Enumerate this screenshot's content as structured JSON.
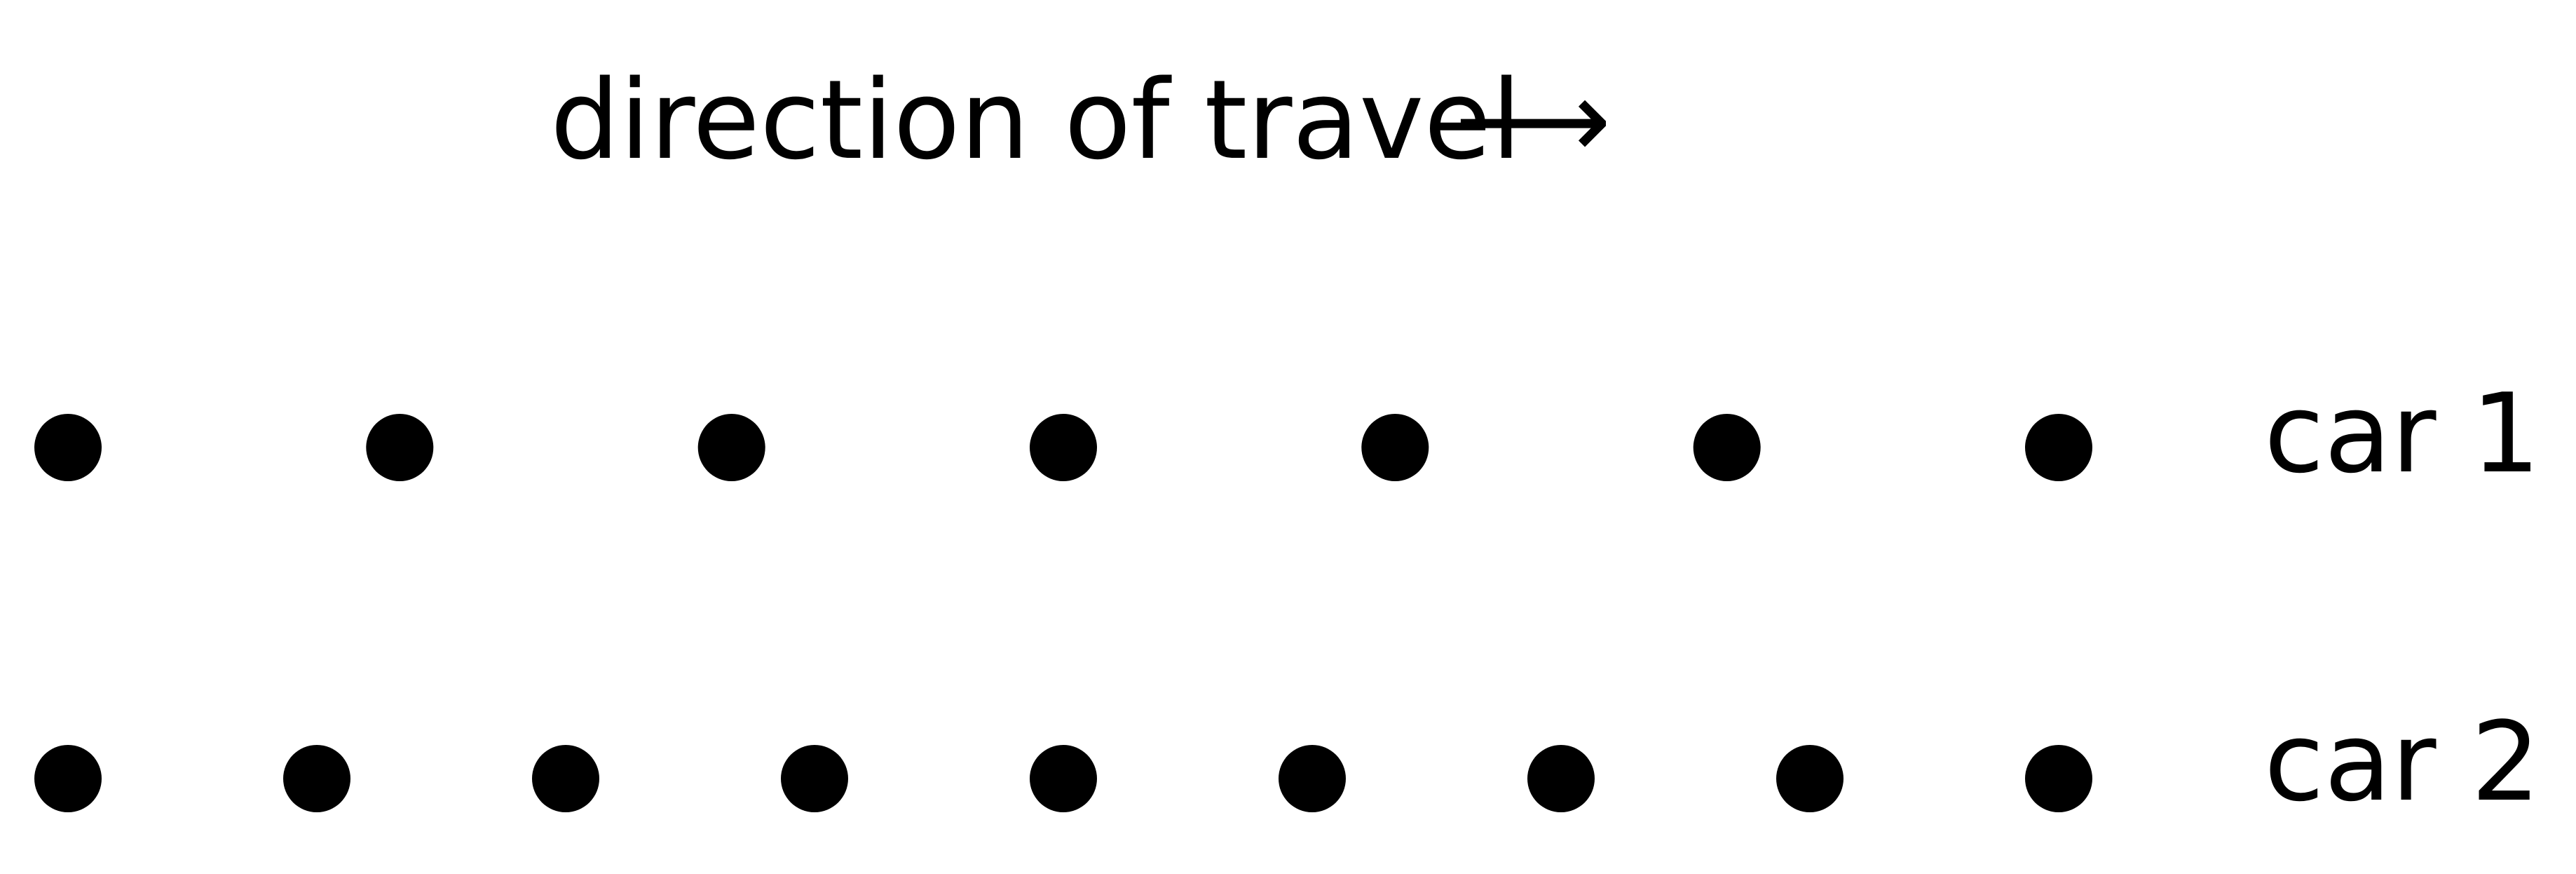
{
  "title": {
    "text": "direction of travel",
    "arrow_glyph": "⟶"
  },
  "rows": [
    {
      "label": "car 1",
      "dot_count": 7
    },
    {
      "label": "car 2",
      "dot_count": 9
    }
  ],
  "colors": {
    "dot": "#000000",
    "text": "#000000",
    "background": "#ffffff"
  }
}
